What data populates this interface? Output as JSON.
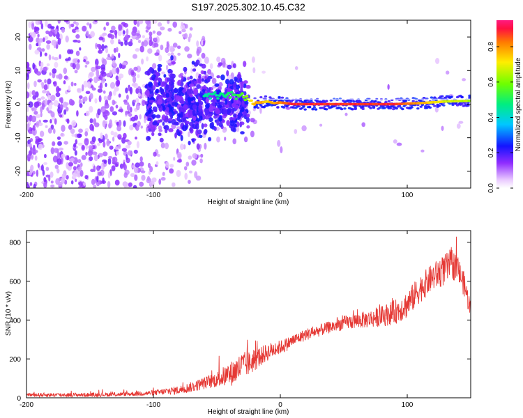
{
  "page_title": "S197.2025.302.10.45.C32",
  "chart_data": [
    {
      "type": "heatmap",
      "title": "S197.2025.302.10.45.C32",
      "xlabel": "Height of straight line (km)",
      "ylabel": "Frequency (Hz)",
      "xlim": [
        -200,
        150
      ],
      "ylim": [
        -25,
        25
      ],
      "xticks": [
        -200,
        -100,
        0,
        100
      ],
      "yticks": [
        -20,
        -10,
        0,
        10,
        20
      ],
      "xtick_labels": [
        "-200",
        "-100",
        "0",
        "100"
      ],
      "ytick_labels": [
        "-20",
        "-10",
        "0",
        "10",
        "20"
      ],
      "colorbar": {
        "label": "Normalized spectral amplitude",
        "range": [
          0.0,
          0.95
        ],
        "ticks": [
          0.0,
          0.2,
          0.4,
          0.6,
          0.8
        ],
        "tick_labels": [
          "0.0",
          "0.2",
          "0.4",
          "0.6",
          "0.8"
        ]
      },
      "ridge": {
        "x": [
          -60,
          -50,
          -40,
          -30,
          -25,
          -20,
          -15,
          -10,
          -5,
          0,
          10,
          30,
          60,
          90,
          110,
          130,
          150
        ],
        "freq": [
          3,
          2.5,
          3,
          2.5,
          1.5,
          0.5,
          0.5,
          0.8,
          0.3,
          0.5,
          0,
          0,
          0,
          0,
          0.3,
          0.8,
          1
        ],
        "amp": [
          0.5,
          0.5,
          0.55,
          0.6,
          0.7,
          0.85,
          0.85,
          0.8,
          0.85,
          0.9,
          0.95,
          0.95,
          0.95,
          0.95,
          0.85,
          0.75,
          0.7
        ]
      },
      "white_line_freq": 1.5
    },
    {
      "type": "line",
      "xlabel": "Height of straight line (km)",
      "ylabel": "SNR (10 * v/v)",
      "xlim": [
        -200,
        150
      ],
      "ylim": [
        0,
        860
      ],
      "xticks": [
        -200,
        -100,
        0,
        100
      ],
      "yticks": [
        0,
        200,
        400,
        600,
        800
      ],
      "xtick_labels": [
        "-200",
        "-100",
        "0",
        "100"
      ],
      "ytick_labels": [
        "0",
        "200",
        "400",
        "600",
        "800"
      ],
      "color": "#e53935",
      "series": [
        {
          "name": "SNR",
          "x": [
            -200,
            -175,
            -150,
            -125,
            -100,
            -80,
            -70,
            -60,
            -50,
            -40,
            -35,
            -30,
            -25,
            -20,
            -15,
            -10,
            -5,
            0,
            5,
            10,
            20,
            30,
            40,
            50,
            60,
            70,
            80,
            90,
            100,
            110,
            120,
            130,
            135,
            140,
            145,
            150
          ],
          "values": [
            15,
            15,
            15,
            18,
            25,
            40,
            55,
            75,
            95,
            120,
            140,
            165,
            175,
            195,
            215,
            235,
            250,
            260,
            275,
            295,
            325,
            345,
            365,
            385,
            395,
            405,
            420,
            440,
            480,
            560,
            620,
            660,
            690,
            660,
            580,
            450
          ],
          "noise": [
            12,
            12,
            12,
            12,
            15,
            25,
            30,
            35,
            45,
            70,
            80,
            80,
            70,
            65,
            55,
            50,
            45,
            40,
            40,
            35,
            35,
            35,
            35,
            40,
            45,
            50,
            60,
            70,
            80,
            80,
            80,
            90,
            90,
            80,
            70,
            60
          ]
        }
      ]
    }
  ]
}
